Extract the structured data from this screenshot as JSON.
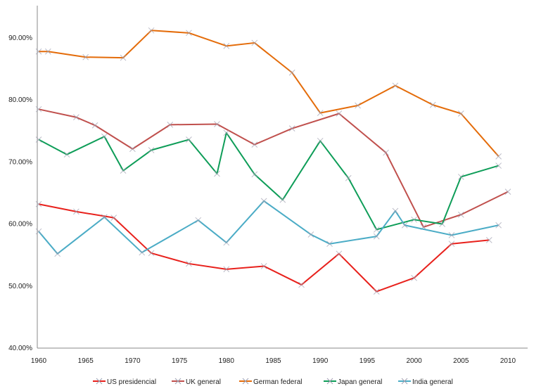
{
  "chart_data": {
    "type": "line",
    "title": "",
    "xlabel": "",
    "ylabel": "",
    "xlim": [
      1960,
      2010
    ],
    "ylim": [
      40,
      90
    ],
    "x_ticks": [
      "1960",
      "1965",
      "1970",
      "1975",
      "1980",
      "1985",
      "1990",
      "1995",
      "2000",
      "2005",
      "2010"
    ],
    "y_ticks": [
      "40.00%",
      "50.00%",
      "60.00%",
      "70.00%",
      "80.00%",
      "90.00%"
    ],
    "grid": false,
    "legend": "bottom",
    "series": [
      {
        "name": "US presidencial",
        "color": "#e8211c",
        "x": [
          1960,
          1964,
          1968,
          1972,
          1976,
          1980,
          1984,
          1988,
          1992,
          1996,
          2000,
          2004,
          2008
        ],
        "y": [
          63.1,
          61.9,
          60.9,
          55.2,
          53.5,
          52.6,
          53.1,
          50.1,
          55.1,
          49.0,
          51.2,
          56.7,
          57.3
        ]
      },
      {
        "name": "UK general",
        "color": "#c0504d",
        "x": [
          1960,
          1964,
          1966,
          1970,
          1974,
          1979,
          1983,
          1987,
          1992,
          1997,
          2001,
          2005,
          2010
        ],
        "y": [
          78.4,
          77.1,
          75.8,
          72.0,
          75.9,
          76.0,
          72.7,
          75.3,
          77.7,
          71.4,
          59.4,
          61.4,
          65.1
        ]
      },
      {
        "name": "German federal",
        "color": "#e46c0a",
        "x": [
          1960,
          1961,
          1965,
          1969,
          1972,
          1976,
          1980,
          1983,
          1987,
          1990,
          1994,
          1998,
          2002,
          2005,
          2009
        ],
        "y": [
          87.7,
          87.7,
          86.8,
          86.7,
          91.1,
          90.7,
          88.6,
          89.1,
          84.3,
          77.8,
          79.0,
          82.2,
          79.1,
          77.7,
          70.8
        ]
      },
      {
        "name": "Japan general",
        "color": "#0e9d58",
        "x": [
          1960,
          1963,
          1967,
          1969,
          1972,
          1976,
          1979,
          1980,
          1983,
          1986,
          1990,
          1993,
          1996,
          2000,
          2003,
          2005,
          2009
        ],
        "y": [
          73.5,
          71.1,
          74.0,
          68.5,
          71.8,
          73.5,
          68.0,
          74.6,
          67.9,
          63.8,
          73.3,
          67.3,
          59.0,
          60.6,
          59.9,
          67.5,
          69.3
        ]
      },
      {
        "name": "India general",
        "color": "#4bacc6",
        "x": [
          1960,
          1962,
          1967,
          1971,
          1977,
          1980,
          1984,
          1989,
          1991,
          1996,
          1998,
          1999,
          2004,
          2009
        ],
        "y": [
          58.7,
          55.1,
          61.0,
          55.3,
          60.5,
          56.9,
          63.6,
          58.2,
          56.7,
          57.9,
          62.0,
          59.7,
          58.1,
          59.7
        ]
      }
    ]
  }
}
